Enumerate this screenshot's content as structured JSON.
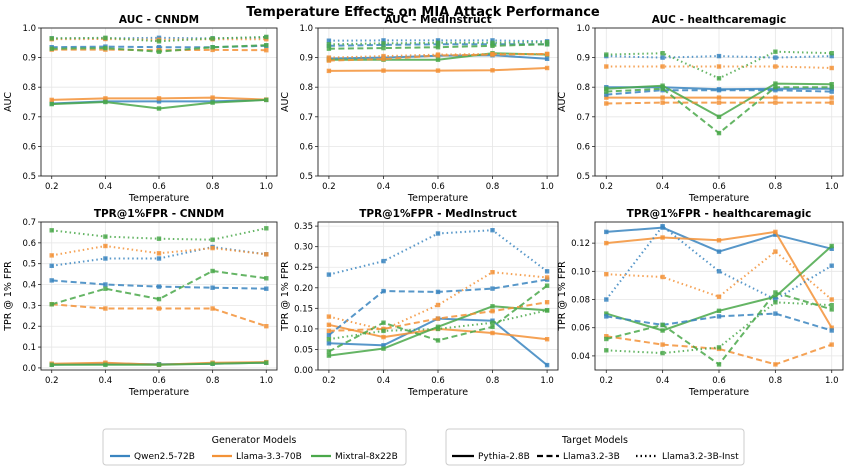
{
  "figure_title": "Temperature Effects on MIA Attack Performance",
  "colors": {
    "Qwen2.5-72B": "#3a85c0",
    "Llama-3.3-70B": "#f39237",
    "Mixtral-8x22B": "#4aa84a"
  },
  "legend_generators": {
    "title": "Generator Models",
    "items": [
      "Qwen2.5-72B",
      "Llama-3.3-70B",
      "Mixtral-8x22B"
    ]
  },
  "legend_targets": {
    "title": "Target Models",
    "items": [
      "Pythia-2.8B",
      "Llama3.2-3B",
      "Llama3.2-3B-Inst"
    ],
    "styles": [
      "solid",
      "dashed",
      "dotted"
    ]
  },
  "chart_data": [
    {
      "type": "line",
      "title": "AUC - CNNDM",
      "xlabel": "Temperature",
      "ylabel": "AUC",
      "x": [
        0.2,
        0.4,
        0.6,
        0.8,
        1.0
      ],
      "ylim": [
        0.5,
        1.0
      ],
      "yticks": [
        0.5,
        0.6,
        0.7,
        0.8,
        0.9,
        1.0
      ],
      "ytick_labels": [
        "0.5",
        "0.6",
        "0.7",
        "0.8",
        "0.9",
        "1.0"
      ],
      "series": [
        {
          "generator": "Qwen2.5-72B",
          "target": "Pythia-2.8B",
          "values": [
            0.745,
            0.752,
            0.752,
            0.752,
            0.757
          ]
        },
        {
          "generator": "Llama-3.3-70B",
          "target": "Pythia-2.8B",
          "values": [
            0.757,
            0.762,
            0.762,
            0.765,
            0.758
          ]
        },
        {
          "generator": "Mixtral-8x22B",
          "target": "Pythia-2.8B",
          "values": [
            0.743,
            0.75,
            0.728,
            0.748,
            0.757
          ]
        },
        {
          "generator": "Qwen2.5-72B",
          "target": "Llama3.2-3B",
          "values": [
            0.935,
            0.937,
            0.935,
            0.935,
            0.94
          ]
        },
        {
          "generator": "Llama-3.3-70B",
          "target": "Llama3.2-3B",
          "values": [
            0.927,
            0.927,
            0.925,
            0.926,
            0.925
          ]
        },
        {
          "generator": "Mixtral-8x22B",
          "target": "Llama3.2-3B",
          "values": [
            0.93,
            0.932,
            0.92,
            0.935,
            0.942
          ]
        },
        {
          "generator": "Qwen2.5-72B",
          "target": "Llama3.2-3B-Inst",
          "values": [
            0.965,
            0.965,
            0.967,
            0.965,
            0.968
          ]
        },
        {
          "generator": "Llama-3.3-70B",
          "target": "Llama3.2-3B-Inst",
          "values": [
            0.962,
            0.963,
            0.96,
            0.962,
            0.962
          ]
        },
        {
          "generator": "Mixtral-8x22B",
          "target": "Llama3.2-3B-Inst",
          "values": [
            0.965,
            0.967,
            0.955,
            0.965,
            0.97
          ]
        }
      ]
    },
    {
      "type": "line",
      "title": "AUC - MedInstruct",
      "xlabel": "Temperature",
      "ylabel": "AUC",
      "x": [
        0.2,
        0.4,
        0.6,
        0.8,
        1.0
      ],
      "ylim": [
        0.5,
        1.0
      ],
      "yticks": [
        0.5,
        0.6,
        0.7,
        0.8,
        0.9,
        1.0
      ],
      "ytick_labels": [
        "0.5",
        "0.6",
        "0.7",
        "0.8",
        "0.9",
        "1.0"
      ],
      "series": [
        {
          "generator": "Qwen2.5-72B",
          "target": "Pythia-2.8B",
          "values": [
            0.897,
            0.9,
            0.906,
            0.908,
            0.896
          ]
        },
        {
          "generator": "Llama-3.3-70B",
          "target": "Pythia-2.8B",
          "values": [
            0.855,
            0.856,
            0.856,
            0.857,
            0.865
          ]
        },
        {
          "generator": "Mixtral-8x22B",
          "target": "Pythia-2.8B",
          "values": [
            0.893,
            0.893,
            0.893,
            0.915,
            0.91
          ]
        },
        {
          "generator": "Qwen2.5-72B",
          "target": "Llama3.2-3B",
          "values": [
            0.94,
            0.943,
            0.945,
            0.945,
            0.945
          ]
        },
        {
          "generator": "Llama-3.3-70B",
          "target": "Llama3.2-3B",
          "values": [
            0.89,
            0.895,
            0.907,
            0.91,
            0.912
          ]
        },
        {
          "generator": "Mixtral-8x22B",
          "target": "Llama3.2-3B",
          "values": [
            0.93,
            0.932,
            0.935,
            0.94,
            0.945
          ]
        },
        {
          "generator": "Qwen2.5-72B",
          "target": "Llama3.2-3B-Inst",
          "values": [
            0.957,
            0.958,
            0.958,
            0.958,
            0.955
          ]
        },
        {
          "generator": "Llama-3.3-70B",
          "target": "Llama3.2-3B-Inst",
          "values": [
            0.9,
            0.905,
            0.91,
            0.912,
            0.912
          ]
        },
        {
          "generator": "Mixtral-8x22B",
          "target": "Llama3.2-3B-Inst",
          "values": [
            0.945,
            0.948,
            0.95,
            0.95,
            0.952
          ]
        }
      ]
    },
    {
      "type": "line",
      "title": "AUC - healthcaremagic",
      "xlabel": "Temperature",
      "ylabel": "AUC",
      "x": [
        0.2,
        0.4,
        0.6,
        0.8,
        1.0
      ],
      "ylim": [
        0.5,
        1.0
      ],
      "yticks": [
        0.5,
        0.6,
        0.7,
        0.8,
        0.9,
        1.0
      ],
      "ytick_labels": [
        "0.5",
        "0.6",
        "0.7",
        "0.8",
        "0.9",
        "1.0"
      ],
      "series": [
        {
          "generator": "Qwen2.5-72B",
          "target": "Pythia-2.8B",
          "values": [
            0.8,
            0.8,
            0.793,
            0.795,
            0.795
          ]
        },
        {
          "generator": "Llama-3.3-70B",
          "target": "Pythia-2.8B",
          "values": [
            0.765,
            0.765,
            0.765,
            0.765,
            0.765
          ]
        },
        {
          "generator": "Mixtral-8x22B",
          "target": "Pythia-2.8B",
          "values": [
            0.795,
            0.805,
            0.7,
            0.812,
            0.81
          ]
        },
        {
          "generator": "Qwen2.5-72B",
          "target": "Llama3.2-3B",
          "values": [
            0.775,
            0.79,
            0.79,
            0.79,
            0.785
          ]
        },
        {
          "generator": "Llama-3.3-70B",
          "target": "Llama3.2-3B",
          "values": [
            0.745,
            0.748,
            0.748,
            0.748,
            0.748
          ]
        },
        {
          "generator": "Mixtral-8x22B",
          "target": "Llama3.2-3B",
          "values": [
            0.785,
            0.795,
            0.645,
            0.8,
            0.8
          ]
        },
        {
          "generator": "Qwen2.5-72B",
          "target": "Llama3.2-3B-Inst",
          "values": [
            0.905,
            0.9,
            0.905,
            0.9,
            0.905
          ]
        },
        {
          "generator": "Llama-3.3-70B",
          "target": "Llama3.2-3B-Inst",
          "values": [
            0.87,
            0.87,
            0.87,
            0.87,
            0.865
          ]
        },
        {
          "generator": "Mixtral-8x22B",
          "target": "Llama3.2-3B-Inst",
          "values": [
            0.91,
            0.915,
            0.83,
            0.92,
            0.915
          ]
        }
      ]
    },
    {
      "type": "line",
      "title": "TPR@1%FPR - CNNDM",
      "xlabel": "Temperature",
      "ylabel": "TPR @ 1% FPR",
      "x": [
        0.2,
        0.4,
        0.6,
        0.8,
        1.0
      ],
      "ylim": [
        -0.01,
        0.7
      ],
      "yticks": [
        0.0,
        0.1,
        0.2,
        0.3,
        0.4,
        0.5,
        0.6,
        0.7
      ],
      "ytick_labels": [
        "0.0",
        "0.1",
        "0.2",
        "0.3",
        "0.4",
        "0.5",
        "0.6",
        "0.7"
      ],
      "series": [
        {
          "generator": "Qwen2.5-72B",
          "target": "Pythia-2.8B",
          "values": [
            0.015,
            0.02,
            0.018,
            0.02,
            0.025
          ]
        },
        {
          "generator": "Llama-3.3-70B",
          "target": "Pythia-2.8B",
          "values": [
            0.02,
            0.025,
            0.015,
            0.025,
            0.028
          ]
        },
        {
          "generator": "Mixtral-8x22B",
          "target": "Pythia-2.8B",
          "values": [
            0.015,
            0.015,
            0.015,
            0.02,
            0.025
          ]
        },
        {
          "generator": "Qwen2.5-72B",
          "target": "Llama3.2-3B",
          "values": [
            0.42,
            0.4,
            0.39,
            0.385,
            0.38
          ]
        },
        {
          "generator": "Llama-3.3-70B",
          "target": "Llama3.2-3B",
          "values": [
            0.305,
            0.285,
            0.285,
            0.285,
            0.2
          ]
        },
        {
          "generator": "Mixtral-8x22B",
          "target": "Llama3.2-3B",
          "values": [
            0.305,
            0.38,
            0.33,
            0.465,
            0.43
          ]
        },
        {
          "generator": "Qwen2.5-72B",
          "target": "Llama3.2-3B-Inst",
          "values": [
            0.49,
            0.525,
            0.525,
            0.58,
            0.545
          ]
        },
        {
          "generator": "Llama-3.3-70B",
          "target": "Llama3.2-3B-Inst",
          "values": [
            0.54,
            0.585,
            0.55,
            0.575,
            0.545
          ]
        },
        {
          "generator": "Mixtral-8x22B",
          "target": "Llama3.2-3B-Inst",
          "values": [
            0.66,
            0.63,
            0.62,
            0.615,
            0.67
          ]
        }
      ]
    },
    {
      "type": "line",
      "title": "TPR@1%FPR - MedInstruct",
      "xlabel": "Temperature",
      "ylabel": "TPR @ 1% FPR",
      "x": [
        0.2,
        0.4,
        0.6,
        0.8,
        1.0
      ],
      "ylim": [
        0.0,
        0.36
      ],
      "yticks": [
        0.0,
        0.05,
        0.1,
        0.15,
        0.2,
        0.25,
        0.3,
        0.35
      ],
      "ytick_labels": [
        "0.00",
        "0.05",
        "0.10",
        "0.15",
        "0.20",
        "0.25",
        "0.30",
        "0.35"
      ],
      "series": [
        {
          "generator": "Qwen2.5-72B",
          "target": "Pythia-2.8B",
          "values": [
            0.065,
            0.06,
            0.125,
            0.12,
            0.012
          ]
        },
        {
          "generator": "Llama-3.3-70B",
          "target": "Pythia-2.8B",
          "values": [
            0.11,
            0.08,
            0.1,
            0.09,
            0.075
          ]
        },
        {
          "generator": "Mixtral-8x22B",
          "target": "Pythia-2.8B",
          "values": [
            0.035,
            0.052,
            0.105,
            0.155,
            0.145
          ]
        },
        {
          "generator": "Qwen2.5-72B",
          "target": "Llama3.2-3B",
          "values": [
            0.085,
            0.192,
            0.19,
            0.198,
            0.22
          ]
        },
        {
          "generator": "Llama-3.3-70B",
          "target": "Llama3.2-3B",
          "values": [
            0.095,
            0.1,
            0.125,
            0.143,
            0.165
          ]
        },
        {
          "generator": "Mixtral-8x22B",
          "target": "Llama3.2-3B",
          "values": [
            0.045,
            0.115,
            0.072,
            0.105,
            0.205
          ]
        },
        {
          "generator": "Qwen2.5-72B",
          "target": "Llama3.2-3B-Inst",
          "values": [
            0.232,
            0.265,
            0.332,
            0.34,
            0.24
          ]
        },
        {
          "generator": "Llama-3.3-70B",
          "target": "Llama3.2-3B-Inst",
          "values": [
            0.13,
            0.098,
            0.158,
            0.238,
            0.225
          ]
        },
        {
          "generator": "Mixtral-8x22B",
          "target": "Llama3.2-3B-Inst",
          "values": [
            0.075,
            0.095,
            0.1,
            0.115,
            0.145
          ]
        }
      ]
    },
    {
      "type": "line",
      "title": "TPR@1%FPR - healthcaremagic",
      "xlabel": "Temperature",
      "ylabel": "TPR @ 1% FPR",
      "x": [
        0.2,
        0.4,
        0.6,
        0.8,
        1.0
      ],
      "ylim": [
        0.03,
        0.135
      ],
      "yticks": [
        0.04,
        0.06,
        0.08,
        0.1,
        0.12
      ],
      "ytick_labels": [
        "0.04",
        "0.06",
        "0.08",
        "0.10",
        "0.12"
      ],
      "series": [
        {
          "generator": "Qwen2.5-72B",
          "target": "Pythia-2.8B",
          "values": [
            0.128,
            0.131,
            0.114,
            0.126,
            0.116
          ]
        },
        {
          "generator": "Llama-3.3-70B",
          "target": "Pythia-2.8B",
          "values": [
            0.12,
            0.124,
            0.122,
            0.128,
            0.06
          ]
        },
        {
          "generator": "Mixtral-8x22B",
          "target": "Pythia-2.8B",
          "values": [
            0.07,
            0.058,
            0.072,
            0.082,
            0.118
          ]
        },
        {
          "generator": "Qwen2.5-72B",
          "target": "Llama3.2-3B",
          "values": [
            0.068,
            0.062,
            0.068,
            0.07,
            0.058
          ]
        },
        {
          "generator": "Llama-3.3-70B",
          "target": "Llama3.2-3B",
          "values": [
            0.054,
            0.048,
            0.045,
            0.034,
            0.048
          ]
        },
        {
          "generator": "Mixtral-8x22B",
          "target": "Llama3.2-3B",
          "values": [
            0.052,
            0.062,
            0.034,
            0.085,
            0.073
          ]
        },
        {
          "generator": "Qwen2.5-72B",
          "target": "Llama3.2-3B-Inst",
          "values": [
            0.08,
            0.132,
            0.1,
            0.08,
            0.104
          ]
        },
        {
          "generator": "Llama-3.3-70B",
          "target": "Llama3.2-3B-Inst",
          "values": [
            0.098,
            0.096,
            0.082,
            0.114,
            0.08
          ]
        },
        {
          "generator": "Mixtral-8x22B",
          "target": "Llama3.2-3B-Inst",
          "values": [
            0.044,
            0.042,
            0.046,
            0.078,
            0.076
          ]
        }
      ]
    }
  ]
}
